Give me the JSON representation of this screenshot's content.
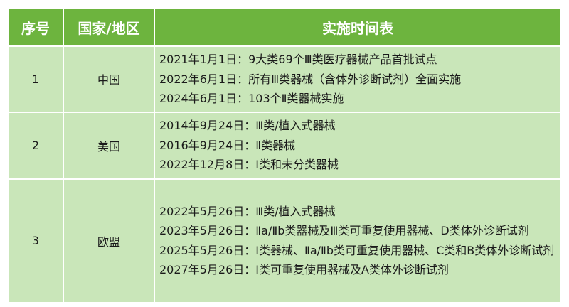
{
  "header": {
    "col_no": "序号",
    "col_region": "国家/地区",
    "col_schedule": "实施时间表"
  },
  "rows": [
    {
      "no": "1",
      "region": "中国",
      "lines": [
        "2021年1月1日：9大类69个Ⅲ类医疗器械产品首批试点",
        "2022年6月1日：所有Ⅲ类器械（含体外诊断试剂）全面实施",
        "2024年6月1日：103个Ⅱ类器械实施"
      ]
    },
    {
      "no": "2",
      "region": "美国",
      "lines": [
        "2014年9月24日：Ⅲ类/植入式器械",
        "2016年9月24日：Ⅱ类器械",
        "2022年12月8日：Ⅰ类和未分类器械"
      ]
    },
    {
      "no": "3",
      "region": "欧盟",
      "lines": [
        "2022年5月26日：Ⅲ类/植入式器械",
        "2023年5月26日：Ⅱa/Ⅱb类器械及Ⅲ类可重复使用器械、D类体外诊断试剂",
        "2025年5月26日：Ⅰ类器械、Ⅱa/Ⅱb类可重复使用器械、C类和B类体外诊断试剂",
        "2027年5月26日：Ⅰ类可重复使用器械及A类体外诊断试剂"
      ]
    }
  ],
  "colors": {
    "header_bg": "#6db43e",
    "body_bg": "#c9e6b9"
  }
}
